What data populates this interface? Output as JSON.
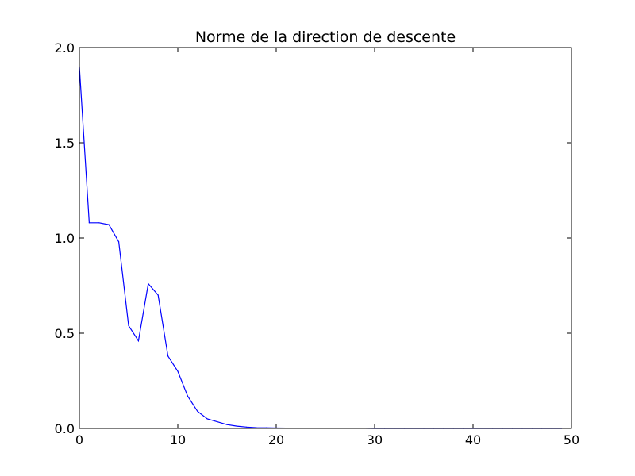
{
  "chart_data": {
    "type": "line",
    "title": "Norme de la direction de descente",
    "xlabel": "",
    "ylabel": "",
    "xlim": [
      0,
      50
    ],
    "ylim": [
      0.0,
      2.0
    ],
    "grid": false,
    "x_ticks": [
      "0",
      "10",
      "20",
      "30",
      "40",
      "50"
    ],
    "y_ticks": [
      "0.0",
      "0.5",
      "1.0",
      "1.5",
      "2.0"
    ],
    "series": [
      {
        "color": "#0000ff",
        "x": [
          0,
          1,
          2,
          3,
          4,
          5,
          6,
          7,
          8,
          9,
          10,
          11,
          12,
          13,
          14,
          15,
          16,
          17,
          18,
          19,
          20,
          21,
          22,
          23,
          24,
          25,
          26,
          27,
          28,
          29,
          30,
          31,
          32,
          33,
          34,
          35,
          36,
          37,
          38,
          39,
          40,
          41,
          42,
          43,
          44,
          45,
          46,
          47,
          48,
          49
        ],
        "values": [
          1.9,
          1.08,
          1.08,
          1.07,
          0.98,
          0.54,
          0.46,
          0.76,
          0.7,
          0.38,
          0.3,
          0.17,
          0.09,
          0.05,
          0.035,
          0.02,
          0.012,
          0.007,
          0.004,
          0.003,
          0.002,
          0.0015,
          0.001,
          0.001,
          0.0008,
          0.0005,
          0.0004,
          0.0003,
          0.0002,
          0.0002,
          0.0001,
          0.0001,
          0.0001,
          0.0001,
          0,
          0,
          0,
          0,
          0,
          0,
          0,
          0,
          0,
          0,
          0,
          0,
          0,
          0,
          0,
          0
        ]
      }
    ]
  }
}
